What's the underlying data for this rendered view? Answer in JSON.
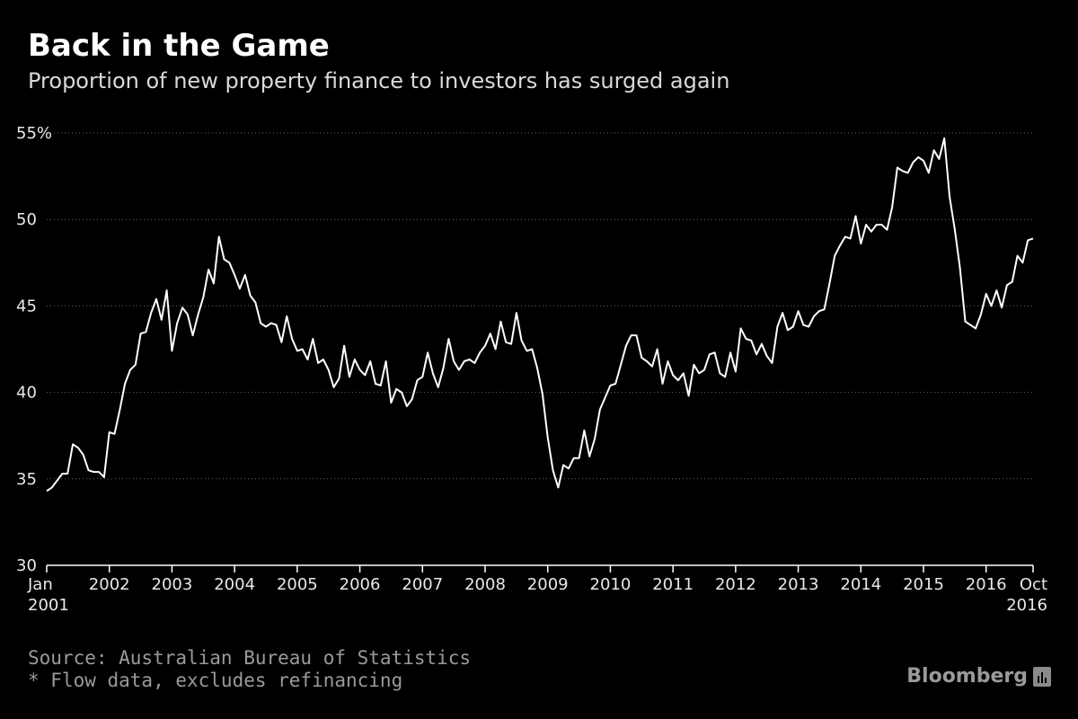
{
  "header": {
    "title": "Back in the Game",
    "subtitle": "Proportion of new property finance to investors has surged again"
  },
  "footer": {
    "source": "Source: Australian Bureau of Statistics",
    "footnote": "* Flow data, excludes refinancing",
    "brand": "Bloomberg"
  },
  "chart_data": {
    "type": "line",
    "title": "Back in the Game",
    "subtitle": "Proportion of new property finance to investors has surged again",
    "xlabel": "",
    "ylabel": "",
    "ylim": [
      30,
      55
    ],
    "grid": true,
    "line_color": "#ffffff",
    "y_ticks": [
      {
        "value": 55,
        "label": "55%"
      },
      {
        "value": 50,
        "label": "50"
      },
      {
        "value": 45,
        "label": "45"
      },
      {
        "value": 40,
        "label": "40"
      },
      {
        "value": 35,
        "label": "35"
      },
      {
        "value": 30,
        "label": "30"
      }
    ],
    "x_ticks": [
      {
        "value": 2001.0,
        "label": "Jan",
        "label2": "2001"
      },
      {
        "value": 2002.0,
        "label": "2002"
      },
      {
        "value": 2003.0,
        "label": "2003"
      },
      {
        "value": 2004.0,
        "label": "2004"
      },
      {
        "value": 2005.0,
        "label": "2005"
      },
      {
        "value": 2006.0,
        "label": "2006"
      },
      {
        "value": 2007.0,
        "label": "2007"
      },
      {
        "value": 2008.0,
        "label": "2008"
      },
      {
        "value": 2009.0,
        "label": "2009"
      },
      {
        "value": 2010.0,
        "label": "2010"
      },
      {
        "value": 2011.0,
        "label": "2011"
      },
      {
        "value": 2012.0,
        "label": "2012"
      },
      {
        "value": 2013.0,
        "label": "2013"
      },
      {
        "value": 2014.0,
        "label": "2014"
      },
      {
        "value": 2015.0,
        "label": "2015"
      },
      {
        "value": 2016.0,
        "label": "2016"
      },
      {
        "value": 2016.75,
        "label": "Oct",
        "label2": "2016"
      }
    ],
    "xlim": [
      2001.0,
      2016.75
    ],
    "series": [
      {
        "x": [
          2001.0,
          2001.083,
          2001.167,
          2001.25,
          2001.333,
          2001.417,
          2001.5,
          2001.583,
          2001.667,
          2001.75,
          2001.833,
          2001.917,
          2002.0,
          2002.083,
          2002.167,
          2002.25,
          2002.333,
          2002.417,
          2002.5,
          2002.583,
          2002.667,
          2002.75,
          2002.833,
          2002.917,
          2003.0,
          2003.083,
          2003.167,
          2003.25,
          2003.333,
          2003.417,
          2003.5,
          2003.583,
          2003.667,
          2003.75,
          2003.833,
          2003.917,
          2004.0,
          2004.083,
          2004.167,
          2004.25,
          2004.333,
          2004.417,
          2004.5,
          2004.583,
          2004.667,
          2004.75,
          2004.833,
          2004.917,
          2005.0,
          2005.083,
          2005.167,
          2005.25,
          2005.333,
          2005.417,
          2005.5,
          2005.583,
          2005.667,
          2005.75,
          2005.833,
          2005.917,
          2006.0,
          2006.083,
          2006.167,
          2006.25,
          2006.333,
          2006.417,
          2006.5,
          2006.583,
          2006.667,
          2006.75,
          2006.833,
          2006.917,
          2007.0,
          2007.083,
          2007.167,
          2007.25,
          2007.333,
          2007.417,
          2007.5,
          2007.583,
          2007.667,
          2007.75,
          2007.833,
          2007.917,
          2008.0,
          2008.083,
          2008.167,
          2008.25,
          2008.333,
          2008.417,
          2008.5,
          2008.583,
          2008.667,
          2008.75,
          2008.833,
          2008.917,
          2009.0,
          2009.083,
          2009.167,
          2009.25,
          2009.333,
          2009.417,
          2009.5,
          2009.583,
          2009.667,
          2009.75,
          2009.833,
          2009.917,
          2010.0,
          2010.083,
          2010.167,
          2010.25,
          2010.333,
          2010.417,
          2010.5,
          2010.583,
          2010.667,
          2010.75,
          2010.833,
          2010.917,
          2011.0,
          2011.083,
          2011.167,
          2011.25,
          2011.333,
          2011.417,
          2011.5,
          2011.583,
          2011.667,
          2011.75,
          2011.833,
          2011.917,
          2012.0,
          2012.083,
          2012.167,
          2012.25,
          2012.333,
          2012.417,
          2012.5,
          2012.583,
          2012.667,
          2012.75,
          2012.833,
          2012.917,
          2013.0,
          2013.083,
          2013.167,
          2013.25,
          2013.333,
          2013.417,
          2013.5,
          2013.583,
          2013.667,
          2013.75,
          2013.833,
          2013.917,
          2014.0,
          2014.083,
          2014.167,
          2014.25,
          2014.333,
          2014.417,
          2014.5,
          2014.583,
          2014.667,
          2014.75,
          2014.833,
          2014.917,
          2015.0,
          2015.083,
          2015.167,
          2015.25,
          2015.333,
          2015.417,
          2015.5,
          2015.583,
          2015.667,
          2015.75,
          2015.833,
          2015.917,
          2016.0,
          2016.083,
          2016.167,
          2016.25,
          2016.333,
          2016.417,
          2016.5,
          2016.583,
          2016.667,
          2016.75
        ],
        "values": [
          34.3,
          34.5,
          34.9,
          35.3,
          35.3,
          37.0,
          36.8,
          36.4,
          35.5,
          35.4,
          35.4,
          35.1,
          37.7,
          37.6,
          39.0,
          40.5,
          41.3,
          41.6,
          43.4,
          43.5,
          44.6,
          45.4,
          44.2,
          45.9,
          42.4,
          44.0,
          44.9,
          44.5,
          43.3,
          44.5,
          45.5,
          47.1,
          46.3,
          49.0,
          47.7,
          47.5,
          46.8,
          46.0,
          46.8,
          45.6,
          45.2,
          44.0,
          43.8,
          44.0,
          43.9,
          42.9,
          44.4,
          43.1,
          42.4,
          42.5,
          41.9,
          43.1,
          41.7,
          41.9,
          41.3,
          40.3,
          40.8,
          42.7,
          40.9,
          41.9,
          41.3,
          41.0,
          41.8,
          40.5,
          40.4,
          41.8,
          39.4,
          40.2,
          40.0,
          39.2,
          39.6,
          40.7,
          40.9,
          42.3,
          41.1,
          40.3,
          41.4,
          43.1,
          41.8,
          41.3,
          41.8,
          41.9,
          41.7,
          42.3,
          42.7,
          43.4,
          42.5,
          44.1,
          42.9,
          42.8,
          44.6,
          43.0,
          42.4,
          42.5,
          41.4,
          39.9,
          37.4,
          35.5,
          34.5,
          35.8,
          35.6,
          36.2,
          36.2,
          37.8,
          36.3,
          37.3,
          39.0,
          39.7,
          40.4,
          40.5,
          41.6,
          42.7,
          43.3,
          43.3,
          42.0,
          41.8,
          41.5,
          42.5,
          40.5,
          41.8,
          41.0,
          40.7,
          41.1,
          39.8,
          41.6,
          41.1,
          41.3,
          42.2,
          42.3,
          41.1,
          40.9,
          42.3,
          41.2,
          43.7,
          43.1,
          43.0,
          42.2,
          42.8,
          42.1,
          41.7,
          43.8,
          44.6,
          43.6,
          43.8,
          44.7,
          43.9,
          43.8,
          44.4,
          44.7,
          44.8,
          46.3,
          47.9,
          48.5,
          49.0,
          48.9,
          50.2,
          48.6,
          49.7,
          49.3,
          49.7,
          49.7,
          49.4,
          50.7,
          53.0,
          52.8,
          52.7,
          53.3,
          53.6,
          53.4,
          52.7,
          54.0,
          53.5,
          54.7,
          51.3,
          49.4,
          47.2,
          44.1,
          43.9,
          43.7,
          44.5,
          45.7,
          45.0,
          45.9,
          44.9,
          46.2,
          46.4,
          47.9,
          47.5,
          48.8,
          48.9
        ]
      }
    ]
  }
}
